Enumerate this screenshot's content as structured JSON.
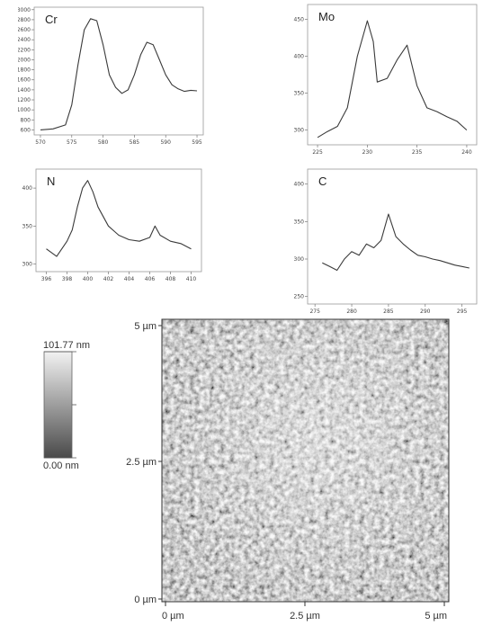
{
  "chart_data": [
    {
      "type": "line",
      "title": "Cr",
      "xlim": [
        569,
        596
      ],
      "ylim": [
        500,
        3050
      ],
      "xticks": [
        570,
        575,
        580,
        585,
        590,
        595
      ],
      "yticks": [
        600,
        800,
        1000,
        1200,
        1400,
        1600,
        1800,
        2000,
        2200,
        2400,
        2600,
        2800,
        3000
      ],
      "points": [
        [
          570,
          600
        ],
        [
          572,
          620
        ],
        [
          574,
          700
        ],
        [
          575,
          1100
        ],
        [
          576,
          1900
        ],
        [
          577,
          2600
        ],
        [
          578,
          2820
        ],
        [
          579,
          2780
        ],
        [
          580,
          2300
        ],
        [
          581,
          1700
        ],
        [
          582,
          1450
        ],
        [
          583,
          1330
        ],
        [
          584,
          1400
        ],
        [
          585,
          1700
        ],
        [
          586,
          2100
        ],
        [
          587,
          2350
        ],
        [
          588,
          2300
        ],
        [
          589,
          2000
        ],
        [
          590,
          1700
        ],
        [
          591,
          1500
        ],
        [
          592,
          1420
        ],
        [
          593,
          1370
        ],
        [
          594,
          1390
        ],
        [
          595,
          1380
        ]
      ]
    },
    {
      "type": "line",
      "title": "Mo",
      "xlim": [
        224,
        241
      ],
      "ylim": [
        280,
        470
      ],
      "xticks": [
        225,
        230,
        235,
        240
      ],
      "yticks": [
        300,
        350,
        400,
        450
      ],
      "points": [
        [
          225,
          290
        ],
        [
          226,
          298
        ],
        [
          227,
          305
        ],
        [
          228,
          330
        ],
        [
          229,
          400
        ],
        [
          230,
          448
        ],
        [
          230.6,
          420
        ],
        [
          231,
          365
        ],
        [
          232,
          370
        ],
        [
          233,
          395
        ],
        [
          234,
          415
        ],
        [
          235,
          360
        ],
        [
          236,
          330
        ],
        [
          237,
          325
        ],
        [
          238,
          318
        ],
        [
          239,
          312
        ],
        [
          240,
          300
        ]
      ]
    },
    {
      "type": "line",
      "title": "N",
      "xlim": [
        395,
        411
      ],
      "ylim": [
        290,
        425
      ],
      "xticks": [
        396,
        398,
        400,
        402,
        404,
        406,
        408,
        410
      ],
      "yticks": [
        300,
        350,
        400
      ],
      "points": [
        [
          396,
          320
        ],
        [
          397,
          310
        ],
        [
          398,
          330
        ],
        [
          398.5,
          345
        ],
        [
          399,
          375
        ],
        [
          399.5,
          400
        ],
        [
          400,
          410
        ],
        [
          400.5,
          395
        ],
        [
          401,
          375
        ],
        [
          402,
          350
        ],
        [
          403,
          338
        ],
        [
          404,
          332
        ],
        [
          405,
          330
        ],
        [
          406,
          335
        ],
        [
          406.5,
          350
        ],
        [
          407,
          338
        ],
        [
          408,
          330
        ],
        [
          409,
          327
        ],
        [
          410,
          320
        ]
      ]
    },
    {
      "type": "line",
      "title": "C",
      "xlim": [
        274,
        297
      ],
      "ylim": [
        240,
        420
      ],
      "xticks": [
        275,
        280,
        285,
        290,
        295
      ],
      "yticks": [
        250,
        300,
        350,
        400
      ],
      "points": [
        [
          276,
          295
        ],
        [
          277,
          290
        ],
        [
          278,
          285
        ],
        [
          279,
          300
        ],
        [
          280,
          310
        ],
        [
          281,
          305
        ],
        [
          282,
          320
        ],
        [
          283,
          315
        ],
        [
          284,
          325
        ],
        [
          285,
          360
        ],
        [
          286,
          330
        ],
        [
          287,
          320
        ],
        [
          288,
          312
        ],
        [
          289,
          305
        ],
        [
          290,
          303
        ],
        [
          291,
          300
        ],
        [
          292,
          298
        ],
        [
          293,
          295
        ],
        [
          294,
          292
        ],
        [
          295,
          290
        ],
        [
          296,
          288
        ]
      ]
    },
    {
      "type": "heatmap",
      "x_ticks": [
        "0 µm",
        "2.5 µm",
        "5 µm"
      ],
      "y_ticks": [
        "5 µm",
        "2.5 µm",
        "0 µm"
      ],
      "colorbar": {
        "max_label": "101.77 nm",
        "min_label": "0.00 nm"
      }
    }
  ]
}
